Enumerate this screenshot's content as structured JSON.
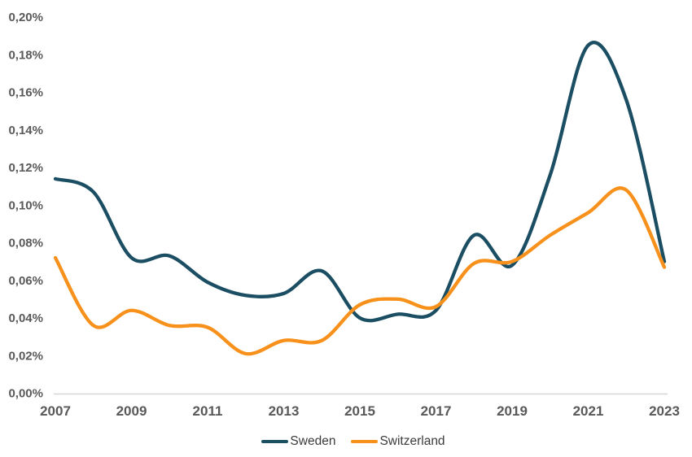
{
  "chart_data": {
    "type": "line",
    "title": "",
    "xlabel": "",
    "ylabel": "",
    "grid": "off",
    "legend_position": "bottom-center",
    "smoothing": "spline",
    "x": [
      2007,
      2008,
      2009,
      2010,
      2011,
      2012,
      2013,
      2014,
      2015,
      2016,
      2017,
      2018,
      2019,
      2020,
      2021,
      2022,
      2023
    ],
    "x_tick_labels": [
      "2007",
      "2009",
      "2011",
      "2013",
      "2015",
      "2017",
      "2019",
      "2021",
      "2023"
    ],
    "x_tick_years": [
      2007,
      2009,
      2011,
      2013,
      2015,
      2017,
      2019,
      2021,
      2023
    ],
    "y_tick_labels": [
      "0,00%",
      "0,02%",
      "0,04%",
      "0,06%",
      "0,08%",
      "0,10%",
      "0,12%",
      "0,14%",
      "0,16%",
      "0,18%",
      "0,20%"
    ],
    "y_tick_values": [
      0.0,
      0.02,
      0.04,
      0.06,
      0.08,
      0.1,
      0.12,
      0.14,
      0.16,
      0.18,
      0.2
    ],
    "ylim": [
      0.0,
      0.2
    ],
    "y_unit": "percent",
    "number_format": "comma-decimal",
    "series": [
      {
        "name": "Sweden",
        "color": "#1b4e63",
        "values": [
          0.114,
          0.107,
          0.072,
          0.073,
          0.059,
          0.052,
          0.053,
          0.065,
          0.04,
          0.042,
          0.044,
          0.084,
          0.068,
          0.116,
          0.185,
          0.156,
          0.07
        ]
      },
      {
        "name": "Switzerland",
        "color": "#f8911b",
        "values": [
          0.072,
          0.036,
          0.044,
          0.036,
          0.035,
          0.021,
          0.028,
          0.028,
          0.047,
          0.05,
          0.046,
          0.069,
          0.07,
          0.084,
          0.096,
          0.108,
          0.067
        ]
      }
    ]
  },
  "colors": {
    "background": "#ffffff",
    "axis_line": "#d6d6d6",
    "tick_label": "#595959",
    "legend_text": "#3b3b3b"
  }
}
